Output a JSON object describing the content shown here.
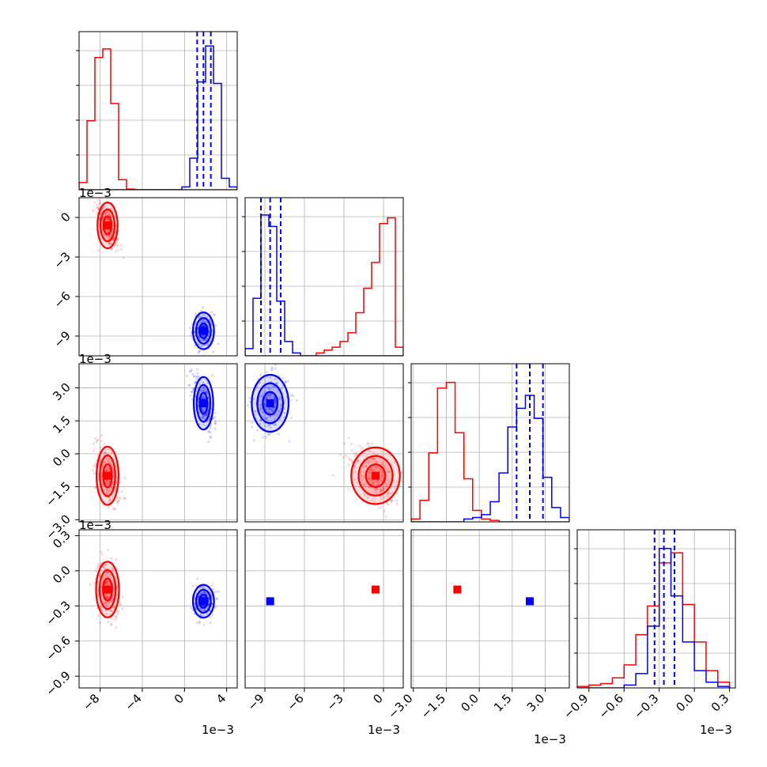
{
  "chart_data": {
    "type": "corner",
    "n_params": 4,
    "axis_scale_label": "1e−3",
    "grid": true,
    "series": [
      {
        "color": "#ff0000",
        "param_means": [
          -7.3,
          -0.6,
          -1.0,
          -0.16
        ],
        "hist_bins": [
          {
            "edges": [
              -10,
              -9.25,
              -8.5,
              -7.75,
              -7,
              -6.25,
              -5.5,
              -4.75,
              -4,
              -3.25,
              -2.5,
              -1.75,
              -1,
              -0.25,
              0.5,
              1.25,
              2,
              2.75,
              3.5,
              4.25,
              5
            ],
            "counts": [
              0.05,
              0.48,
              0.92,
              0.98,
              0.6,
              0.07,
              0.005,
              0,
              0,
              0,
              0,
              0,
              0,
              0,
              0,
              0,
              0,
              0,
              0,
              0
            ]
          },
          {
            "edges": [
              -10.5,
              -9.9,
              -9.3,
              -8.7,
              -8.1,
              -7.5,
              -6.9,
              -6.3,
              -5.7,
              -5.1,
              -4.5,
              -3.9,
              -3.3,
              -2.7,
              -2.1,
              -1.5,
              -0.9,
              -0.3,
              0.3,
              0.9,
              1.5
            ],
            "counts": [
              0,
              0,
              0,
              0,
              0,
              0,
              0,
              0,
              0,
              0.02,
              0.04,
              0.06,
              0.1,
              0.16,
              0.3,
              0.47,
              0.65,
              0.92,
              0.96,
              0.06
            ]
          },
          {
            "edges": [
              -3.1,
              -2.7,
              -2.3,
              -1.9,
              -1.5,
              -1.1,
              -0.7,
              -0.3,
              0.1,
              0.5,
              0.9,
              1.3,
              1.7,
              2.1,
              2.5,
              2.9,
              3.3,
              3.7,
              4.1
            ],
            "counts": [
              0.02,
              0.15,
              0.48,
              0.93,
              0.97,
              0.62,
              0.3,
              0.08,
              0.02,
              0.01,
              0,
              0,
              0,
              0,
              0,
              0,
              0,
              0
            ]
          },
          {
            "edges": [
              -1.0,
              -0.9,
              -0.8,
              -0.7,
              -0.6,
              -0.5,
              -0.4,
              -0.3,
              -0.2,
              -0.1,
              0.0,
              0.1,
              0.2,
              0.3
            ],
            "counts": [
              0.01,
              0.02,
              0.03,
              0.07,
              0.16,
              0.37,
              0.57,
              0.87,
              0.94,
              0.58,
              0.32,
              0.12,
              0.04
            ]
          }
        ],
        "scatter_spread": [
          [
            0.55,
            -1.6,
            -0.35
          ],
          [
            0.5,
            1.5
          ],
          [
            0.7
          ]
        ],
        "contour_sigmas": [
          [
            0.55,
            1.2
          ],
          [
            1.0,
            0.9
          ],
          [
            0.7,
            0.12
          ]
        ],
        "contour_corr": [
          [
            -0.7,
            0.55,
            0.65
          ],
          [
            -0.45,
            -0.55
          ],
          [
            -0.2
          ]
        ]
      },
      {
        "color": "#0000ff",
        "param_means": [
          1.8,
          -8.6,
          2.3,
          -0.26
        ],
        "quantiles": [
          [
            1.2,
            1.8,
            2.5
          ],
          [
            -9.3,
            -8.6,
            -7.8
          ],
          [
            1.7,
            2.3,
            2.9
          ],
          [
            -0.34,
            -0.26,
            -0.17
          ]
        ],
        "hist_bins": [
          {
            "edges": [
              -10,
              -9.25,
              -8.5,
              -7.75,
              -7,
              -6.25,
              -5.5,
              -4.75,
              -4,
              -3.25,
              -2.5,
              -1.75,
              -1,
              -0.25,
              0.5,
              1.25,
              2,
              2.75,
              3.5,
              4.25,
              5
            ],
            "counts": [
              0,
              0,
              0,
              0,
              0,
              0,
              0,
              0,
              0,
              0,
              0,
              0,
              0,
              0.02,
              0.22,
              0.75,
              1.0,
              0.74,
              0.08,
              0.02
            ]
          },
          {
            "edges": [
              -10.5,
              -9.9,
              -9.3,
              -8.7,
              -8.1,
              -7.5,
              -6.9,
              -6.3,
              -5.7,
              -5.1,
              -4.5,
              -3.9,
              -3.3,
              -2.7,
              -2.1,
              -1.5,
              -0.9,
              -0.3,
              0.3,
              0.9,
              1.5
            ],
            "counts": [
              0.05,
              0.4,
              0.98,
              0.9,
              0.38,
              0.1,
              0.02,
              0,
              0,
              0,
              0,
              0,
              0,
              0,
              0,
              0,
              0,
              0,
              0,
              0
            ]
          },
          {
            "edges": [
              -3.1,
              -2.7,
              -2.3,
              -1.9,
              -1.5,
              -1.1,
              -0.7,
              -0.3,
              0.1,
              0.5,
              0.9,
              1.3,
              1.7,
              2.1,
              2.5,
              2.9,
              3.3,
              3.7,
              4.1
            ],
            "counts": [
              0,
              0,
              0,
              0,
              0,
              0,
              0.02,
              0.03,
              0.05,
              0.14,
              0.34,
              0.66,
              0.79,
              0.88,
              0.72,
              0.31,
              0.1,
              0.03
            ]
          },
          {
            "edges": [
              -1.0,
              -0.9,
              -0.8,
              -0.7,
              -0.6,
              -0.5,
              -0.4,
              -0.3,
              -0.2,
              -0.1,
              0.0,
              0.1,
              0.2,
              0.3
            ],
            "counts": [
              0,
              0,
              0,
              0,
              0.02,
              0.1,
              0.43,
              0.97,
              0.64,
              0.32,
              0.12,
              0.04,
              0.01
            ]
          }
        ],
        "scatter_spread": [
          [
            0.5,
            -0.45,
            0.35
          ],
          [
            0.55,
            0.7
          ],
          [
            0.7
          ]
        ],
        "contour_sigmas": [
          [
            0.5,
            0.65
          ],
          [
            0.7,
            0.55
          ],
          [
            0.65,
            0.07
          ]
        ],
        "contour_corr": [
          [
            -0.1,
            0.0,
            0.0
          ],
          [
            -0.55,
            0.1
          ],
          [
            0.0
          ]
        ]
      }
    ],
    "axes": [
      {
        "range": [
          -10,
          5
        ],
        "ticks": [
          -8,
          -4,
          0,
          4
        ],
        "labels": [
          "−8",
          "−4",
          "0",
          "4"
        ]
      },
      {
        "range": [
          -10.5,
          1.5
        ],
        "ticks": [
          -9,
          -6,
          -3,
          0
        ],
        "labels": [
          "−9",
          "−6",
          "−3",
          "0"
        ]
      },
      {
        "range": [
          -3.1,
          4.1
        ],
        "ticks": [
          -3.0,
          -1.5,
          0.0,
          1.5,
          3.0
        ],
        "labels": [
          "−3.0",
          "−1.5",
          "0.0",
          "1.5",
          "3.0"
        ]
      },
      {
        "range": [
          -1.0,
          0.35
        ],
        "ticks": [
          -0.9,
          -0.6,
          -0.3,
          0.0,
          0.3
        ],
        "labels": [
          "−0.9",
          "−0.6",
          "−0.3",
          "0.0",
          "0.3"
        ]
      }
    ],
    "diag_ylim": [
      0,
      1.1
    ],
    "diag_grid_fracs": [
      0.22,
      0.44,
      0.66,
      0.88
    ]
  }
}
